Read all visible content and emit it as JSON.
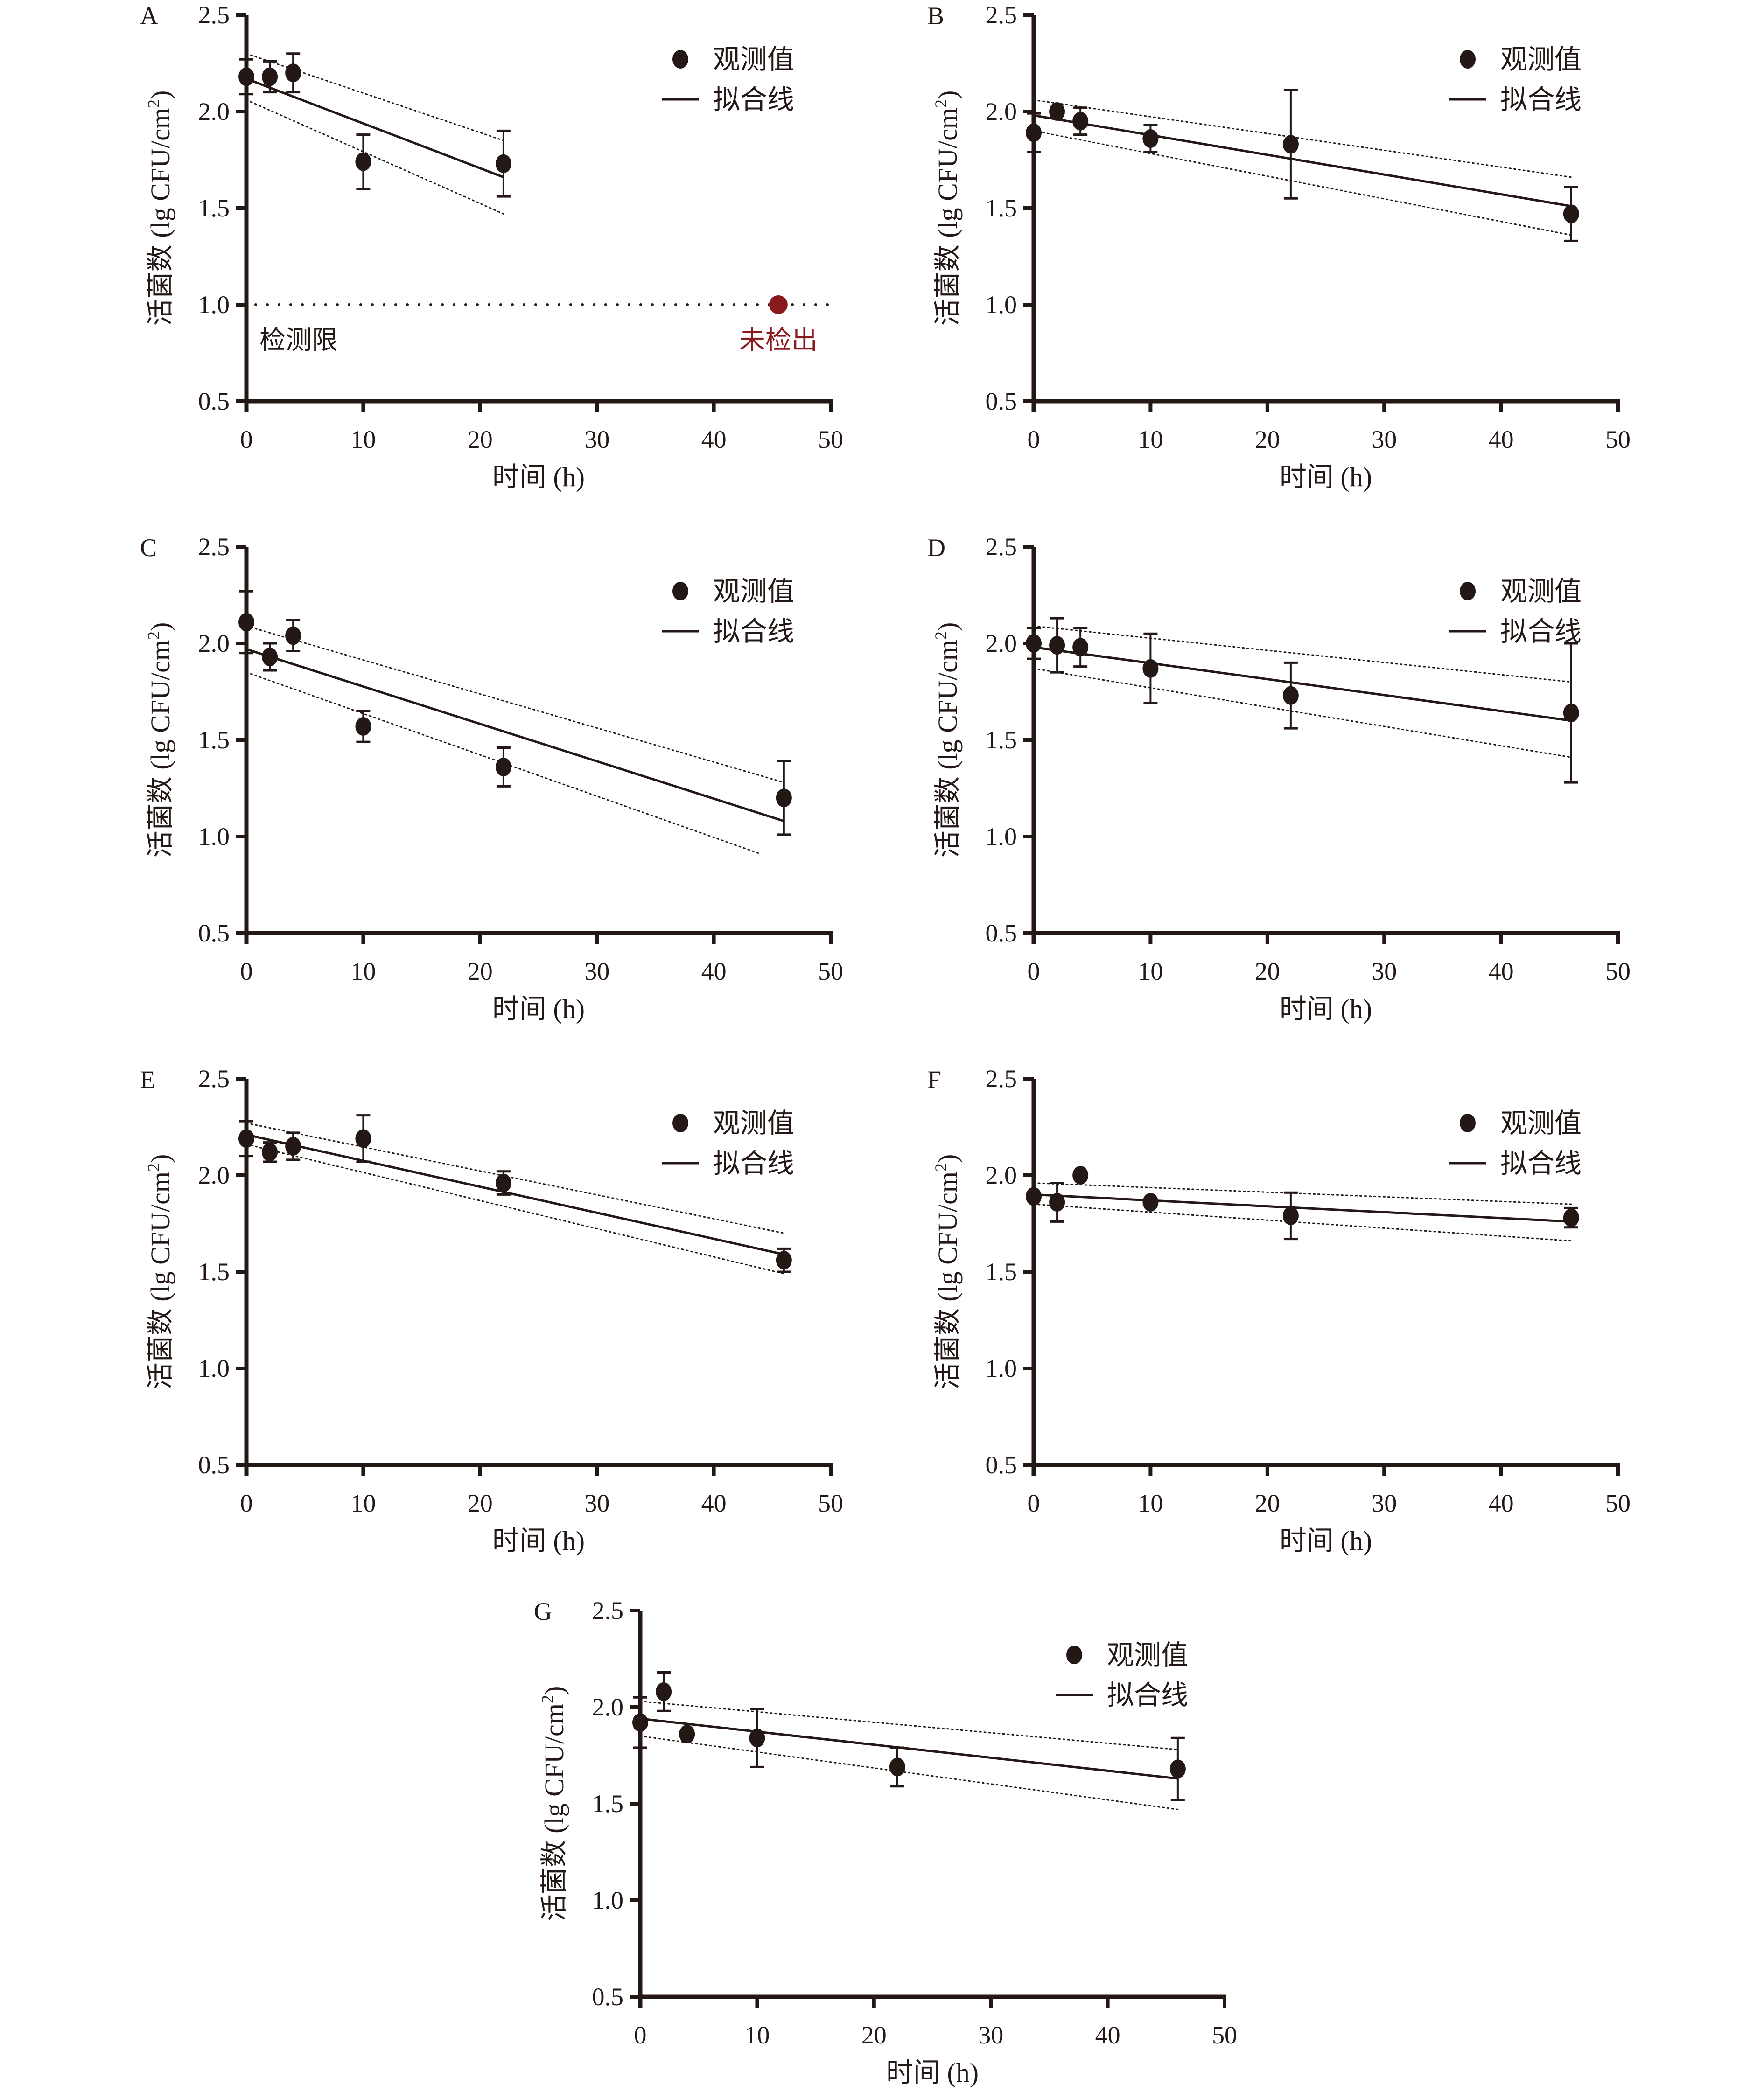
{
  "figure": {
    "colors": {
      "ink": "#231815",
      "not_detected": "#8b1a1f"
    },
    "common": {
      "ylabel": "活菌数 (lg CFU/cm²)",
      "ylabel_main": "活菌数 (lg CFU/cm",
      "ylabel_sup": "2",
      "ylabel_close": ")",
      "xlabel": "时间 (h)",
      "legend_observed": "观测值",
      "legend_fit": "拟合线"
    }
  },
  "chart_data": [
    {
      "panel": "A",
      "type": "scatter",
      "xlabel": "时间 (h)",
      "ylabel": "活菌数 (lg CFU/cm²)",
      "xlim": [
        0,
        50
      ],
      "ylim": [
        0.5,
        2.5
      ],
      "xticks": [
        "0",
        "10",
        "20",
        "30",
        "40",
        "50"
      ],
      "yticks": [
        "0.5",
        "1.0",
        "1.5",
        "2.0",
        "2.5"
      ],
      "legend": [
        "观测值",
        "拟合线"
      ],
      "legend_position": "top-right",
      "points": [
        {
          "x": 0,
          "y": 2.18,
          "err": 0.09
        },
        {
          "x": 2,
          "y": 2.18,
          "err": 0.08
        },
        {
          "x": 4,
          "y": 2.2,
          "err": 0.1
        },
        {
          "x": 10,
          "y": 1.74,
          "err": 0.14
        },
        {
          "x": 22,
          "y": 1.73,
          "err": 0.17
        }
      ],
      "fit": {
        "x": [
          0,
          22
        ],
        "y": [
          2.17,
          1.66
        ]
      },
      "ci_upper": {
        "x": [
          0,
          22
        ],
        "y": [
          2.3,
          1.85
        ]
      },
      "ci_lower": {
        "x": [
          0,
          22
        ],
        "y": [
          2.06,
          1.47
        ]
      },
      "detection_limit": {
        "y": 1.0,
        "label": "检测限"
      },
      "not_detected": {
        "x": 46,
        "y": 1.0,
        "label": "未检出"
      }
    },
    {
      "panel": "B",
      "type": "scatter",
      "xlabel": "时间 (h)",
      "ylabel": "活菌数 (lg CFU/cm²)",
      "xlim": [
        0,
        50
      ],
      "ylim": [
        0.5,
        2.5
      ],
      "xticks": [
        "0",
        "10",
        "20",
        "30",
        "40",
        "50"
      ],
      "yticks": [
        "0.5",
        "1.0",
        "1.5",
        "2.0",
        "2.5"
      ],
      "legend": [
        "观测值",
        "拟合线"
      ],
      "legend_position": "top-right",
      "points": [
        {
          "x": 0,
          "y": 1.89,
          "err": 0.1
        },
        {
          "x": 2,
          "y": 2.0,
          "err": 0
        },
        {
          "x": 4,
          "y": 1.95,
          "err": 0.07
        },
        {
          "x": 10,
          "y": 1.86,
          "err": 0.07
        },
        {
          "x": 22,
          "y": 1.83,
          "err": 0.28
        },
        {
          "x": 46,
          "y": 1.47,
          "err": 0.14
        }
      ],
      "fit": {
        "x": [
          0,
          46
        ],
        "y": [
          1.98,
          1.51
        ]
      },
      "ci_upper": {
        "x": [
          0,
          46
        ],
        "y": [
          2.06,
          1.66
        ]
      },
      "ci_lower": {
        "x": [
          0,
          46
        ],
        "y": [
          1.9,
          1.36
        ]
      }
    },
    {
      "panel": "C",
      "type": "scatter",
      "xlabel": "时间 (h)",
      "ylabel": "活菌数 (lg CFU/cm²)",
      "xlim": [
        0,
        50
      ],
      "ylim": [
        0.5,
        2.5
      ],
      "xticks": [
        "0",
        "10",
        "20",
        "30",
        "40",
        "50"
      ],
      "yticks": [
        "0.5",
        "1.0",
        "1.5",
        "2.0",
        "2.5"
      ],
      "legend": [
        "观测值",
        "拟合线"
      ],
      "legend_position": "top-right",
      "points": [
        {
          "x": 0,
          "y": 2.11,
          "err": 0.16
        },
        {
          "x": 2,
          "y": 1.93,
          "err": 0.07
        },
        {
          "x": 4,
          "y": 2.04,
          "err": 0.08
        },
        {
          "x": 10,
          "y": 1.57,
          "err": 0.08
        },
        {
          "x": 22,
          "y": 1.36,
          "err": 0.1
        },
        {
          "x": 46,
          "y": 1.2,
          "err": 0.19
        }
      ],
      "fit": {
        "x": [
          0,
          46
        ],
        "y": [
          1.97,
          1.08
        ]
      },
      "ci_upper": {
        "x": [
          0,
          46
        ],
        "y": [
          2.09,
          1.28
        ]
      },
      "ci_lower": {
        "x": [
          0,
          44
        ],
        "y": [
          1.85,
          0.91
        ]
      }
    },
    {
      "panel": "D",
      "type": "scatter",
      "xlabel": "时间 (h)",
      "ylabel": "活菌数 (lg CFU/cm²)",
      "xlim": [
        0,
        50
      ],
      "ylim": [
        0.5,
        2.5
      ],
      "xticks": [
        "0",
        "10",
        "20",
        "30",
        "40",
        "50"
      ],
      "yticks": [
        "0.5",
        "1.0",
        "1.5",
        "2.0",
        "2.5"
      ],
      "legend": [
        "观测值",
        "拟合线"
      ],
      "legend_position": "top-right",
      "points": [
        {
          "x": 0,
          "y": 2.0,
          "err": 0.08
        },
        {
          "x": 2,
          "y": 1.99,
          "err": 0.14
        },
        {
          "x": 4,
          "y": 1.98,
          "err": 0.1
        },
        {
          "x": 10,
          "y": 1.87,
          "err": 0.18
        },
        {
          "x": 22,
          "y": 1.73,
          "err": 0.17
        },
        {
          "x": 46,
          "y": 1.64,
          "err": 0.36
        }
      ],
      "fit": {
        "x": [
          0,
          46
        ],
        "y": [
          1.98,
          1.6
        ]
      },
      "ci_upper": {
        "x": [
          0,
          46
        ],
        "y": [
          2.09,
          1.8
        ]
      },
      "ci_lower": {
        "x": [
          0,
          46
        ],
        "y": [
          1.87,
          1.41
        ]
      }
    },
    {
      "panel": "E",
      "type": "scatter",
      "xlabel": "时间 (h)",
      "ylabel": "活菌数 (lg CFU/cm²)",
      "xlim": [
        0,
        50
      ],
      "ylim": [
        0.5,
        2.5
      ],
      "xticks": [
        "0",
        "10",
        "20",
        "30",
        "40",
        "50"
      ],
      "yticks": [
        "0.5",
        "1.0",
        "1.5",
        "2.0",
        "2.5"
      ],
      "legend": [
        "观测值",
        "拟合线"
      ],
      "legend_position": "top-right",
      "points": [
        {
          "x": 0,
          "y": 2.19,
          "err": 0.09
        },
        {
          "x": 2,
          "y": 2.12,
          "err": 0.05
        },
        {
          "x": 4,
          "y": 2.15,
          "err": 0.07
        },
        {
          "x": 10,
          "y": 2.19,
          "err": 0.12
        },
        {
          "x": 22,
          "y": 1.96,
          "err": 0.06
        },
        {
          "x": 46,
          "y": 1.56,
          "err": 0.06
        }
      ],
      "fit": {
        "x": [
          0,
          46
        ],
        "y": [
          2.21,
          1.59
        ]
      },
      "ci_upper": {
        "x": [
          0,
          46
        ],
        "y": [
          2.27,
          1.7
        ]
      },
      "ci_lower": {
        "x": [
          0,
          46
        ],
        "y": [
          2.16,
          1.49
        ]
      }
    },
    {
      "panel": "F",
      "type": "scatter",
      "xlabel": "时间 (h)",
      "ylabel": "活菌数 (lg CFU/cm²)",
      "xlim": [
        0,
        50
      ],
      "ylim": [
        0.5,
        2.5
      ],
      "xticks": [
        "0",
        "10",
        "20",
        "30",
        "40",
        "50"
      ],
      "yticks": [
        "0.5",
        "1.0",
        "1.5",
        "2.0",
        "2.5"
      ],
      "legend": [
        "观测值",
        "拟合线"
      ],
      "legend_position": "top-right",
      "points": [
        {
          "x": 0,
          "y": 1.89,
          "err": 0
        },
        {
          "x": 2,
          "y": 1.86,
          "err": 0.1
        },
        {
          "x": 4,
          "y": 2.0,
          "err": 0
        },
        {
          "x": 10,
          "y": 1.86,
          "err": 0
        },
        {
          "x": 22,
          "y": 1.79,
          "err": 0.12
        },
        {
          "x": 46,
          "y": 1.78,
          "err": 0.05
        }
      ],
      "fit": {
        "x": [
          0,
          46
        ],
        "y": [
          1.9,
          1.76
        ]
      },
      "ci_upper": {
        "x": [
          0,
          46
        ],
        "y": [
          1.96,
          1.85
        ]
      },
      "ci_lower": {
        "x": [
          0,
          46
        ],
        "y": [
          1.85,
          1.66
        ]
      }
    },
    {
      "panel": "G",
      "type": "scatter",
      "xlabel": "时间 (h)",
      "ylabel": "活菌数 (lg CFU/cm²)",
      "xlim": [
        0,
        50
      ],
      "ylim": [
        0.5,
        2.5
      ],
      "xticks": [
        "0",
        "10",
        "20",
        "30",
        "40",
        "50"
      ],
      "yticks": [
        "0.5",
        "1.0",
        "1.5",
        "2.0",
        "2.5"
      ],
      "legend": [
        "观测值",
        "拟合线"
      ],
      "legend_position": "top-right",
      "points": [
        {
          "x": 0,
          "y": 1.92,
          "err": 0.13
        },
        {
          "x": 2,
          "y": 2.08,
          "err": 0.1
        },
        {
          "x": 4,
          "y": 1.86,
          "err": 0
        },
        {
          "x": 10,
          "y": 1.84,
          "err": 0.15
        },
        {
          "x": 22,
          "y": 1.69,
          "err": 0.1
        },
        {
          "x": 46,
          "y": 1.68,
          "err": 0.16
        }
      ],
      "fit": {
        "x": [
          0,
          46
        ],
        "y": [
          1.94,
          1.63
        ]
      },
      "ci_upper": {
        "x": [
          0,
          46
        ],
        "y": [
          2.03,
          1.78
        ]
      },
      "ci_lower": {
        "x": [
          0,
          46
        ],
        "y": [
          1.85,
          1.47
        ]
      }
    }
  ]
}
